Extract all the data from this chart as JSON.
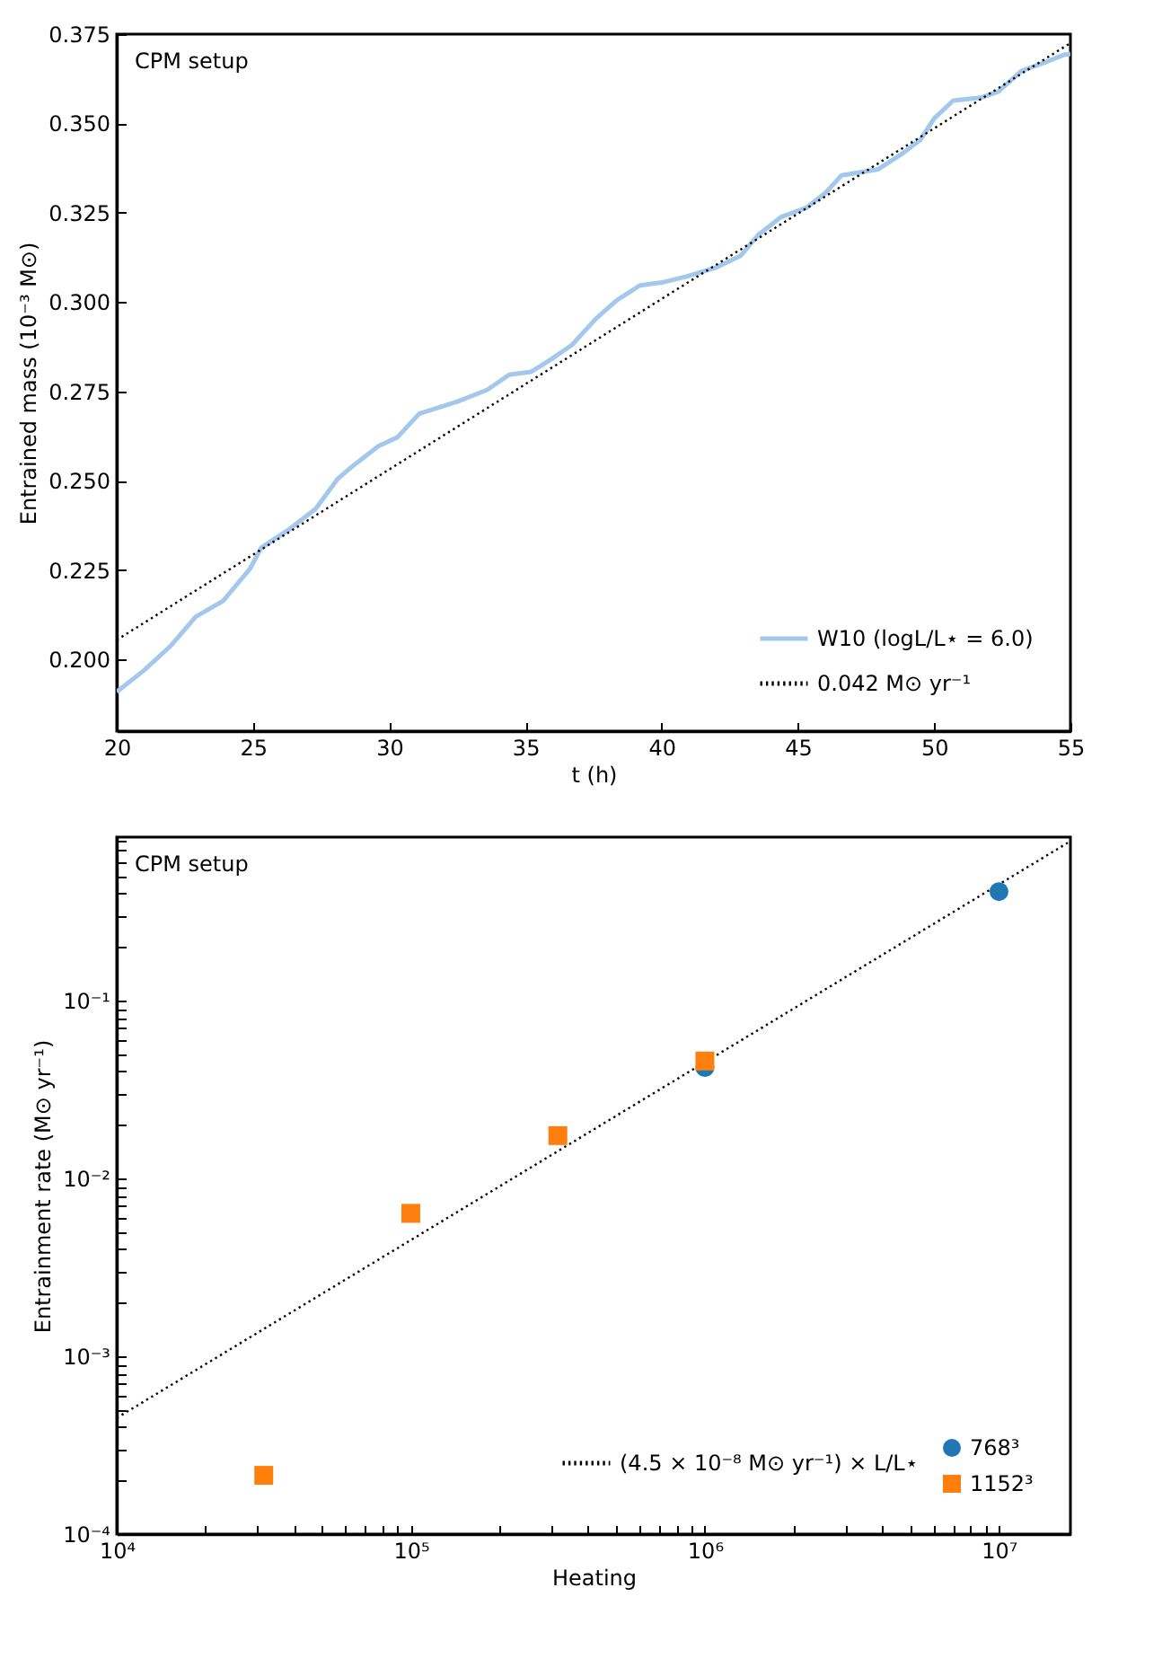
{
  "chart_data": [
    {
      "type": "line",
      "xlabel": "t (h)",
      "ylabel": "Entrained mass (10⁻³ M⊙)",
      "annotations": [
        "CPM setup"
      ],
      "xlim": [
        20,
        55
      ],
      "xticks": [
        20,
        25,
        30,
        35,
        40,
        45,
        50,
        55
      ],
      "ylim": [
        0.18,
        0.375
      ],
      "yticks": [
        {
          "value": 0.2,
          "label": "0.200"
        },
        {
          "value": 0.225,
          "label": "0.225"
        },
        {
          "value": 0.25,
          "label": "0.250"
        },
        {
          "value": 0.275,
          "label": "0.275"
        },
        {
          "value": 0.3,
          "label": "0.300"
        },
        {
          "value": 0.325,
          "label": "0.325"
        },
        {
          "value": 0.35,
          "label": "0.350"
        },
        {
          "value": 0.375,
          "label": "0.375"
        }
      ],
      "grid": false,
      "legend": "bottom right",
      "series": [
        {
          "name": "W10 (logL/L⋆ = 6.0)",
          "color": "#a3c8ec",
          "line_style": "solid",
          "x": [
            20,
            21,
            22,
            22.9,
            23.9,
            24.9,
            25.3,
            26.3,
            27.3,
            28.1,
            28.6,
            29.6,
            30.3,
            31.1,
            32.5,
            33.6,
            34.4,
            35.2,
            35.9,
            36.7,
            37.6,
            38.35,
            39.2,
            40,
            40.9,
            42,
            42.9,
            43.55,
            44.4,
            45.3,
            46,
            46.6,
            47.95,
            48.8,
            49.5,
            50,
            50.7,
            51.7,
            52.35,
            53.2,
            54.1,
            54.76,
            55
          ],
          "values": [
            0.191,
            0.197,
            0.204,
            0.212,
            0.2164,
            0.2255,
            0.2313,
            0.2363,
            0.2422,
            0.2505,
            0.2538,
            0.2597,
            0.2622,
            0.2688,
            0.2722,
            0.2755,
            0.2797,
            0.2805,
            0.2838,
            0.288,
            0.2955,
            0.3005,
            0.3047,
            0.3055,
            0.3072,
            0.3097,
            0.313,
            0.3189,
            0.3239,
            0.3264,
            0.3305,
            0.3355,
            0.3372,
            0.3414,
            0.3455,
            0.3514,
            0.3564,
            0.3572,
            0.3589,
            0.3647,
            0.3672,
            0.3692,
            0.3695
          ]
        },
        {
          "name": "0.042 M⊙ yr⁻¹",
          "color": "#000000",
          "line_style": "dotted",
          "x": [
            20,
            55
          ],
          "values": [
            0.2055,
            0.3725
          ]
        }
      ]
    },
    {
      "type": "scatter",
      "xlabel": "Heating",
      "ylabel": "Entrainment rate (M⊙ yr⁻¹)",
      "annotations": [
        "CPM setup"
      ],
      "log": "xy",
      "xlim": [
        10000,
        17500000
      ],
      "xticks": [
        {
          "value": 10000,
          "label": "10⁴"
        },
        {
          "value": 20000,
          "label": null
        },
        {
          "value": 30000,
          "label": null
        },
        {
          "value": 40000,
          "label": null
        },
        {
          "value": 50000,
          "label": null
        },
        {
          "value": 60000,
          "label": null
        },
        {
          "value": 70000,
          "label": null
        },
        {
          "value": 80000,
          "label": null
        },
        {
          "value": 90000,
          "label": null
        },
        {
          "value": 100000,
          "label": "10⁵"
        },
        {
          "value": 200000,
          "label": null
        },
        {
          "value": 300000,
          "label": null
        },
        {
          "value": 400000,
          "label": null
        },
        {
          "value": 500000,
          "label": null
        },
        {
          "value": 600000,
          "label": null
        },
        {
          "value": 700000,
          "label": null
        },
        {
          "value": 800000,
          "label": null
        },
        {
          "value": 900000,
          "label": null
        },
        {
          "value": 1000000,
          "label": "10⁶"
        },
        {
          "value": 2000000,
          "label": null
        },
        {
          "value": 3000000,
          "label": null
        },
        {
          "value": 4000000,
          "label": null
        },
        {
          "value": 5000000,
          "label": null
        },
        {
          "value": 6000000,
          "label": null
        },
        {
          "value": 7000000,
          "label": null
        },
        {
          "value": 8000000,
          "label": null
        },
        {
          "value": 9000000,
          "label": null
        },
        {
          "value": 10000000,
          "label": "10⁷"
        }
      ],
      "ylim": [
        0.0001,
        0.83
      ],
      "yticks": [
        {
          "value": 0.0001,
          "label": "10⁻⁴"
        },
        {
          "value": 0.0002,
          "label": null
        },
        {
          "value": 0.0003,
          "label": null
        },
        {
          "value": 0.0004,
          "label": null
        },
        {
          "value": 0.0005,
          "label": null
        },
        {
          "value": 0.0006,
          "label": null
        },
        {
          "value": 0.0007,
          "label": null
        },
        {
          "value": 0.0008,
          "label": null
        },
        {
          "value": 0.0009,
          "label": null
        },
        {
          "value": 0.001,
          "label": "10⁻³"
        },
        {
          "value": 0.002,
          "label": null
        },
        {
          "value": 0.003,
          "label": null
        },
        {
          "value": 0.004,
          "label": null
        },
        {
          "value": 0.005,
          "label": null
        },
        {
          "value": 0.006,
          "label": null
        },
        {
          "value": 0.007,
          "label": null
        },
        {
          "value": 0.008,
          "label": null
        },
        {
          "value": 0.009,
          "label": null
        },
        {
          "value": 0.01,
          "label": "10⁻²"
        },
        {
          "value": 0.02,
          "label": null
        },
        {
          "value": 0.03,
          "label": null
        },
        {
          "value": 0.04,
          "label": null
        },
        {
          "value": 0.05,
          "label": null
        },
        {
          "value": 0.06,
          "label": null
        },
        {
          "value": 0.07,
          "label": null
        },
        {
          "value": 0.08,
          "label": null
        },
        {
          "value": 0.09,
          "label": null
        },
        {
          "value": 0.1,
          "label": "10⁻¹"
        },
        {
          "value": 0.2,
          "label": null
        },
        {
          "value": 0.3,
          "label": null
        },
        {
          "value": 0.4,
          "label": null
        },
        {
          "value": 0.5,
          "label": null
        },
        {
          "value": 0.6,
          "label": null
        },
        {
          "value": 0.7,
          "label": null
        },
        {
          "value": 0.8,
          "label": null
        }
      ],
      "grid": false,
      "legend": "bottom right",
      "series": [
        {
          "type": "line",
          "name": "(4.5 × 10⁻⁸ M⊙ yr⁻¹) × L/L⋆",
          "color": "#000000",
          "line_style": "dotted",
          "x": [
            10000,
            17500000
          ],
          "values": [
            0.00045,
            0.7875
          ]
        },
        {
          "name": "768³",
          "color": "#1f77b4",
          "marker": "circle",
          "x": [
            1000000,
            10000000
          ],
          "values": [
            0.042,
            0.41
          ]
        },
        {
          "name": "1152³",
          "color": "#ff7f0e",
          "marker": "square",
          "x": [
            31623,
            100000,
            316228,
            1000000
          ],
          "values": [
            0.000214,
            0.00636,
            0.0174,
            0.0457
          ]
        }
      ]
    }
  ]
}
